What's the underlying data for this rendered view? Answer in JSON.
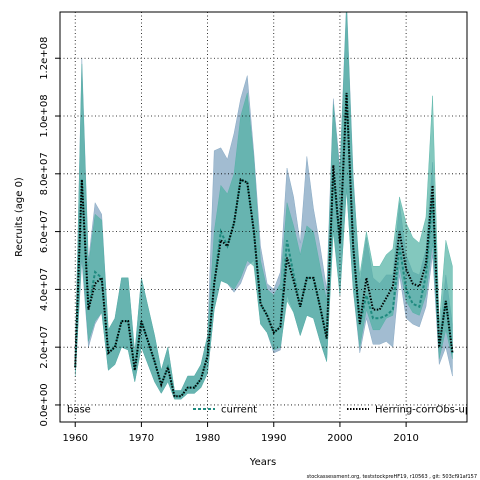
{
  "chart_data": {
    "type": "line",
    "xlabel": "Years",
    "ylabel": "Recruits (age 0)",
    "footer": "stockassessment.org, teststockpreHF19, r10563 , git: 503cf91af157",
    "x": [
      1960,
      1961,
      1962,
      1963,
      1964,
      1965,
      1966,
      1967,
      1968,
      1969,
      1970,
      1971,
      1972,
      1973,
      1974,
      1975,
      1976,
      1977,
      1978,
      1979,
      1980,
      1981,
      1982,
      1983,
      1984,
      1985,
      1986,
      1987,
      1988,
      1989,
      1990,
      1991,
      1992,
      1993,
      1994,
      1995,
      1996,
      1997,
      1998,
      1999,
      2000,
      2001,
      2002,
      2003,
      2004,
      2005,
      2006,
      2007,
      2008,
      2009,
      2010,
      2011,
      2012,
      2013,
      2014,
      2015,
      2016,
      2017
    ],
    "xlim": [
      1957.7,
      2019.2
    ],
    "ylim": [
      -5900000.0,
      136000000.0
    ],
    "xticks": [
      1960,
      1970,
      1980,
      1990,
      2000,
      2010
    ],
    "yticks": [
      {
        "value": 0,
        "label": "0.0e+00"
      },
      {
        "value": 20000000.0,
        "label": "2.0e+07"
      },
      {
        "value": 40000000.0,
        "label": "4.0e+07"
      },
      {
        "value": 60000000.0,
        "label": "6.0e+07"
      },
      {
        "value": 80000000.0,
        "label": "8.0e+07"
      },
      {
        "value": 100000000.0,
        "label": "1.0e+08"
      },
      {
        "value": 120000000.0,
        "label": "1.2e+08"
      }
    ],
    "grid": true,
    "series": [
      {
        "name": "base",
        "color": "#7a9fbd",
        "upper": [
          16000000.0,
          120000000.0,
          50000000.0,
          70000000.0,
          66000000.0,
          26000000.0,
          30000000.0,
          44000000.0,
          44000000.0,
          18000000.0,
          44000000.0,
          34000000.0,
          24000000.0,
          12000000.0,
          20000000.0,
          5000000.0,
          5000000.0,
          10000000.0,
          10000000.0,
          14000000.0,
          24000000.0,
          88000000.0,
          89000000.0,
          85000000.0,
          94000000.0,
          106000000.0,
          114000000.0,
          87000000.0,
          55000000.0,
          42000000.0,
          40000000.0,
          46000000.0,
          82000000.0,
          72000000.0,
          56000000.0,
          86000000.0,
          68000000.0,
          55000000.0,
          40000000.0,
          106000000.0,
          82000000.0,
          140000000.0,
          80000000.0,
          42000000.0,
          58000000.0,
          44000000.0,
          42000000.0,
          45000000.0,
          45000000.0,
          70000000.0,
          52000000.0,
          46000000.0,
          45000000.0,
          54000000.0,
          84000000.0,
          24000000.0,
          45000000.0,
          28000000.0
        ],
        "lower": [
          10000000.0,
          50000000.0,
          20000000.0,
          28000000.0,
          32000000.0,
          12000000.0,
          14000000.0,
          20000000.0,
          19000000.0,
          8000000.0,
          20000000.0,
          14000000.0,
          8000000.0,
          4000000.0,
          8000000.0,
          2000000.0,
          2000000.0,
          4000000.0,
          4000000.0,
          6000000.0,
          11000000.0,
          33000000.0,
          43000000.0,
          42000000.0,
          39000000.0,
          42000000.0,
          48000000.0,
          50000000.0,
          28000000.0,
          25000000.0,
          18000000.0,
          19000000.0,
          38000000.0,
          32000000.0,
          24000000.0,
          31000000.0,
          30000000.0,
          22000000.0,
          15000000.0,
          62000000.0,
          38000000.0,
          75000000.0,
          40000000.0,
          18000000.0,
          30000000.0,
          21000000.0,
          21000000.0,
          22000000.0,
          20000000.0,
          45000000.0,
          30000000.0,
          28000000.0,
          27000000.0,
          34000000.0,
          52000000.0,
          14000000.0,
          20000000.0,
          10000000.0
        ]
      },
      {
        "name": "current",
        "color": "#1f8a7f",
        "values": [
          13000000.0,
          78000000.0,
          33000000.0,
          46000000.0,
          44000000.0,
          18000000.0,
          20000000.0,
          29000000.0,
          29000000.0,
          12000000.0,
          29000000.0,
          22000000.0,
          15000000.0,
          7000000.0,
          13000000.0,
          3000000.0,
          3000000.0,
          6000000.0,
          6000000.0,
          9000000.0,
          17000000.0,
          42000000.0,
          60000000.0,
          55000000.0,
          63000000.0,
          78000000.0,
          77000000.0,
          60000000.0,
          35000000.0,
          31000000.0,
          25000000.0,
          27000000.0,
          57000000.0,
          45000000.0,
          34000000.0,
          44000000.0,
          44000000.0,
          34000000.0,
          23000000.0,
          80000000.0,
          56000000.0,
          108000000.0,
          55000000.0,
          28000000.0,
          38000000.0,
          30000000.0,
          30000000.0,
          31000000.0,
          33000000.0,
          55000000.0,
          40000000.0,
          35000000.0,
          34000000.0,
          45000000.0,
          72000000.0,
          20000000.0,
          36000000.0,
          18000000.0
        ]
      },
      {
        "name": "Herring-corrObs-up",
        "color": "#000000",
        "values": [
          13000000.0,
          78000000.0,
          33000000.0,
          42000000.0,
          44000000.0,
          18000000.0,
          20000000.0,
          29000000.0,
          29000000.0,
          12000000.0,
          29000000.0,
          22000000.0,
          15000000.0,
          7000000.0,
          13000000.0,
          3000000.0,
          3000000.0,
          6000000.0,
          6000000.0,
          9000000.0,
          17000000.0,
          42000000.0,
          57000000.0,
          55000000.0,
          63000000.0,
          78000000.0,
          77000000.0,
          60000000.0,
          35000000.0,
          31000000.0,
          25000000.0,
          27000000.0,
          51000000.0,
          43000000.0,
          34000000.0,
          44000000.0,
          44000000.0,
          34000000.0,
          23000000.0,
          83000000.0,
          56000000.0,
          108000000.0,
          55000000.0,
          28000000.0,
          44000000.0,
          33000000.0,
          33000000.0,
          37000000.0,
          41000000.0,
          60000000.0,
          47000000.0,
          42000000.0,
          41000000.0,
          49000000.0,
          76000000.0,
          20000000.0,
          36000000.0,
          18000000.0
        ],
        "band_color": "#4fb0a2",
        "upper": [
          16000000.0,
          118000000.0,
          48000000.0,
          66000000.0,
          64000000.0,
          26000000.0,
          30000000.0,
          44000000.0,
          44000000.0,
          18000000.0,
          44000000.0,
          34000000.0,
          24000000.0,
          12000000.0,
          20000000.0,
          5000000.0,
          5000000.0,
          10000000.0,
          10000000.0,
          14000000.0,
          24000000.0,
          60000000.0,
          76000000.0,
          73000000.0,
          80000000.0,
          100000000.0,
          108000000.0,
          85000000.0,
          50000000.0,
          40000000.0,
          38000000.0,
          42000000.0,
          70000000.0,
          62000000.0,
          52000000.0,
          62000000.0,
          60000000.0,
          48000000.0,
          36000000.0,
          104000000.0,
          80000000.0,
          138000000.0,
          78000000.0,
          45000000.0,
          60000000.0,
          48000000.0,
          48000000.0,
          52000000.0,
          54000000.0,
          72000000.0,
          63000000.0,
          58000000.0,
          56000000.0,
          65000000.0,
          107000000.0,
          28000000.0,
          57000000.0,
          48000000.0
        ],
        "lower": [
          10000000.0,
          52000000.0,
          22000000.0,
          29000000.0,
          32000000.0,
          12000000.0,
          14000000.0,
          20000000.0,
          19000000.0,
          8000000.0,
          20000000.0,
          14000000.0,
          8000000.0,
          4000000.0,
          8000000.0,
          2000000.0,
          2000000.0,
          4000000.0,
          4000000.0,
          6000000.0,
          11000000.0,
          33000000.0,
          43000000.0,
          42000000.0,
          40000000.0,
          44000000.0,
          50000000.0,
          48000000.0,
          28000000.0,
          25000000.0,
          19000000.0,
          20000000.0,
          36000000.0,
          32000000.0,
          24000000.0,
          31000000.0,
          30000000.0,
          22000000.0,
          15000000.0,
          60000000.0,
          38000000.0,
          75000000.0,
          40000000.0,
          20000000.0,
          33000000.0,
          26000000.0,
          26000000.0,
          30000000.0,
          31000000.0,
          48000000.0,
          36000000.0,
          32000000.0,
          31000000.0,
          38000000.0,
          56000000.0,
          16000000.0,
          26000000.0,
          16000000.0
        ]
      }
    ]
  }
}
